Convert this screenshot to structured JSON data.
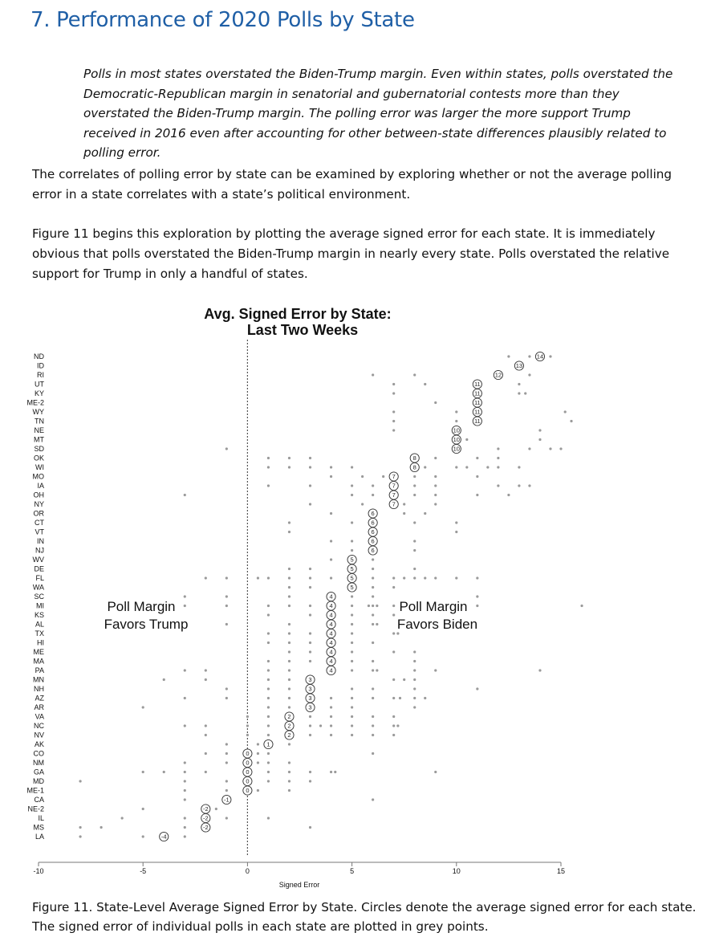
{
  "section_title": "7. Performance of 2020 Polls by State",
  "summary": "Polls in most states overstated the Biden-Trump margin. Even within states, polls overstated the Democratic-Republican margin in senatorial and gubernatorial contests more than they overstated the Biden-Trump margin. The polling error was larger the more support Trump received in 2016 even after accounting for other between-state differences plausibly related to polling error.",
  "paragraph1": "The correlates of polling error by state can be examined by exploring whether or not the average polling error in a state correlates with a state’s political environment.",
  "paragraph2": "Figure 11 begins this exploration by plotting the average signed error for each state. It is immediately obvious that polls overstated the Biden-Trump margin in nearly every state.  Polls overstated the relative support for Trump in only a handful of states.",
  "caption": "Figure 11. State-Level Average Signed Error by State. Circles denote the average signed error for each state. The signed error of individual polls in each state are plotted in grey points.",
  "colors": {
    "heading": "#1f5fa6",
    "points": "#9a9a9a",
    "circle": "#333333"
  },
  "chart_data": {
    "type": "scatter",
    "title": "Avg. Signed Error by State:",
    "subtitle": "Last Two Weeks",
    "xlabel": "Signed Error",
    "xlim": [
      -10,
      15
    ],
    "xticks": [
      -10,
      -5,
      0,
      5,
      10,
      15
    ],
    "vertical_reference_line": 0,
    "annotations": [
      "Poll Margin",
      "Favors Trump",
      "Poll Margin",
      "Favors Biden"
    ],
    "states": [
      "ND",
      "ID",
      "RI",
      "UT",
      "KY",
      "ME-2",
      "WY",
      "TN",
      "NE",
      "MT",
      "SD",
      "OK",
      "WI",
      "MO",
      "IA",
      "OH",
      "NY",
      "OR",
      "CT",
      "VT",
      "IN",
      "NJ",
      "WV",
      "DE",
      "FL",
      "WA",
      "SC",
      "MI",
      "KS",
      "AL",
      "TX",
      "HI",
      "ME",
      "MA",
      "PA",
      "MN",
      "NH",
      "AZ",
      "AR",
      "VA",
      "NC",
      "NV",
      "AK",
      "CO",
      "NM",
      "GA",
      "MD",
      "ME-1",
      "CA",
      "NE-2",
      "IL",
      "MS",
      "LA"
    ],
    "mean_errors": [
      14.0,
      13.0,
      12.0,
      11.0,
      11.0,
      11.0,
      11.0,
      11.0,
      10.0,
      10.0,
      10.0,
      8.0,
      8.0,
      7.0,
      7.0,
      7.0,
      7.0,
      6.0,
      6.0,
      6.0,
      6.0,
      6.0,
      5.0,
      5.0,
      5.0,
      5.0,
      4.0,
      4.0,
      4.0,
      4.0,
      4.0,
      4.0,
      4.0,
      4.0,
      4.0,
      3.0,
      3.0,
      3.0,
      3.0,
      2.0,
      2.0,
      2.0,
      1.0,
      0.0,
      0.0,
      0.0,
      0.0,
      0.0,
      -1.0,
      -2.0,
      -2.0,
      -2.0,
      -4.0
    ],
    "circle_labels": [
      "14",
      "13",
      "12",
      "11",
      "11",
      "11",
      "11",
      "11",
      "10",
      "10",
      "10",
      "8",
      "8",
      "7",
      "7",
      "7",
      "7",
      "6",
      "6",
      "6",
      "6",
      "6",
      "5",
      "5",
      "5",
      "5",
      "4",
      "4",
      "4",
      "4",
      "4",
      "4",
      "4",
      "4",
      "4",
      "3",
      "3",
      "3",
      "3",
      "2",
      "2",
      "2",
      "1",
      "0",
      "0",
      "0",
      "0",
      "0",
      "-1",
      "-2",
      "-2",
      "-2",
      "-4"
    ],
    "poll_points": [
      [
        12.5,
        13.5,
        14.5
      ],
      [
        13.0
      ],
      [
        6.0,
        8.0,
        13.5
      ],
      [
        7.0,
        8.5,
        13.0
      ],
      [
        7.0,
        13.0,
        13.3
      ],
      [
        9.0
      ],
      [
        7.0,
        10.0,
        15.2
      ],
      [
        7.0,
        10.0,
        15.5
      ],
      [
        7.0,
        14.0
      ],
      [
        10.0,
        10.5,
        14.0
      ],
      [
        -1.0,
        12.0,
        13.5,
        14.5,
        15.0
      ],
      [
        1.0,
        2.0,
        3.0,
        9.0,
        11.0,
        12.0
      ],
      [
        1.0,
        2.0,
        3.0,
        4.0,
        5.0,
        8.5,
        10.0,
        10.5,
        11.5,
        12.0,
        13.0
      ],
      [
        4.0,
        5.5,
        6.5,
        8.0,
        9.0,
        11.0
      ],
      [
        1.0,
        3.0,
        5.0,
        6.0,
        8.0,
        9.0,
        12.0,
        13.0,
        13.5
      ],
      [
        -3.0,
        5.0,
        6.0,
        8.0,
        9.0,
        11.0,
        12.5
      ],
      [
        3.0,
        5.5,
        7.5,
        9.0
      ],
      [
        4.0,
        6.0,
        7.5,
        8.5
      ],
      [
        2.0,
        5.0,
        8.0,
        10.0
      ],
      [
        2.0,
        10.0
      ],
      [
        4.0,
        5.0,
        6.0,
        8.0
      ],
      [
        5.0,
        8.0
      ],
      [
        4.0,
        5.0,
        6.0
      ],
      [
        2.0,
        3.0,
        5.0,
        6.0,
        8.0
      ],
      [
        -2.0,
        -1.0,
        0.5,
        1.0,
        2.0,
        3.0,
        4.0,
        6.0,
        7.0,
        7.5,
        8.0,
        8.5,
        9.0,
        10.0,
        11.0
      ],
      [
        2.0,
        3.0,
        5.0,
        6.0,
        7.0
      ],
      [
        -3.0,
        -1.0,
        2.0,
        5.0,
        6.0,
        11.0
      ],
      [
        -3.0,
        -1.0,
        1.0,
        2.0,
        3.0,
        5.0,
        5.8,
        6.0,
        6.2,
        7.0,
        11.0,
        16.0
      ],
      [
        1.0,
        3.0,
        5.0,
        6.0,
        7.0
      ],
      [
        -1.0,
        2.0,
        5.0,
        6.0,
        6.2
      ],
      [
        1.0,
        2.0,
        3.0,
        5.0,
        7.0,
        7.2
      ],
      [
        1.0,
        2.0,
        3.0,
        5.0,
        6.0
      ],
      [
        2.0,
        3.0,
        5.0,
        7.0,
        8.0
      ],
      [
        1.0,
        2.0,
        3.0,
        5.0,
        6.0,
        8.0
      ],
      [
        -3.0,
        -2.0,
        1.0,
        2.0,
        5.0,
        6.0,
        6.2,
        8.0,
        9.0,
        14.0
      ],
      [
        -4.0,
        -2.0,
        1.0,
        2.0,
        3.0,
        7.0,
        7.5,
        8.0
      ],
      [
        -1.0,
        1.0,
        2.0,
        3.0,
        5.0,
        6.0,
        8.0,
        11.0
      ],
      [
        -3.0,
        -1.0,
        1.0,
        2.0,
        4.0,
        5.0,
        6.0,
        7.0,
        7.3,
        8.0,
        8.5
      ],
      [
        -5.0,
        1.0,
        2.0,
        4.0,
        5.0,
        8.0
      ],
      [
        0.0,
        1.0,
        3.0,
        4.0,
        5.0,
        6.0,
        7.0
      ],
      [
        -3.0,
        -2.0,
        0.0,
        1.0,
        3.0,
        3.5,
        4.0,
        5.0,
        6.0,
        7.0,
        7.2
      ],
      [
        -2.0,
        0.0,
        1.0,
        2.0,
        3.0,
        4.0,
        5.0,
        6.0,
        7.0
      ],
      [
        -1.0,
        0.5,
        1.0,
        2.0
      ],
      [
        -2.0,
        -1.0,
        0.5,
        1.0,
        6.0
      ],
      [
        -3.0,
        -1.0,
        0.5,
        1.0,
        2.0
      ],
      [
        -5.0,
        -4.0,
        -3.0,
        -2.0,
        1.0,
        2.0,
        3.0,
        4.0,
        4.2,
        9.0
      ],
      [
        -8.0,
        -3.0,
        -1.0,
        1.0,
        2.0,
        3.0
      ],
      [
        -3.0,
        -1.0,
        0.5,
        2.0
      ],
      [
        -3.0,
        6.0
      ],
      [
        -5.0,
        -1.5
      ],
      [
        -6.0,
        -3.0,
        -1.0,
        1.0
      ],
      [
        -8.0,
        -7.0,
        -3.0,
        -2.0,
        3.0
      ],
      [
        -8.0,
        -5.0,
        -3.0
      ]
    ]
  }
}
